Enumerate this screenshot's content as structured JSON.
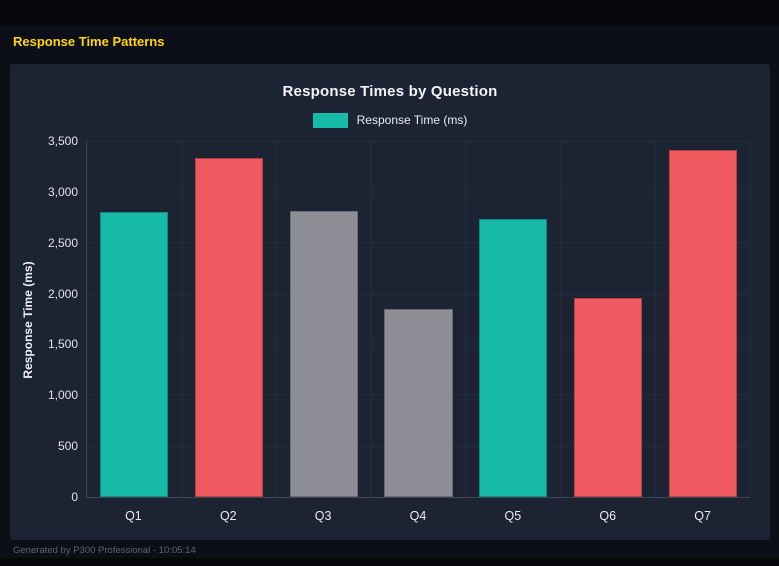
{
  "page": {
    "title": "Response Time Patterns",
    "footer": "Generated by P300 Professional - 10:05:14"
  },
  "chart_data": {
    "type": "bar",
    "title": "Response Times by Question",
    "legend": [
      {
        "label": "Response Time (ms)",
        "color": "#17b9a8"
      }
    ],
    "categories": [
      "Q1",
      "Q2",
      "Q3",
      "Q4",
      "Q5",
      "Q6",
      "Q7"
    ],
    "values": [
      2800,
      3330,
      2810,
      1845,
      2735,
      1960,
      3410
    ],
    "bar_colors": [
      "#17b9a8",
      "#ee5a5f",
      "#8e8e96",
      "#8e8e96",
      "#17b9a8",
      "#ee5a5f",
      "#ee5a5f"
    ],
    "xlabel": "",
    "ylabel": "Response Time (ms)",
    "ylim": [
      0,
      3500
    ],
    "ytick_step": 500,
    "ytick_labels": [
      "0",
      "500",
      "1,000",
      "1,500",
      "2,000",
      "2,500",
      "3,000",
      "3,500"
    ],
    "grid": true,
    "legend_position": "top"
  },
  "colors": {
    "accent_teal": "#17b9a8",
    "accent_red": "#ee5a5f",
    "neutral_gray": "#8e8e96",
    "title_yellow": "#ffd60a",
    "panel_bg": "#1c2433",
    "page_bg": "#0c0f17"
  }
}
